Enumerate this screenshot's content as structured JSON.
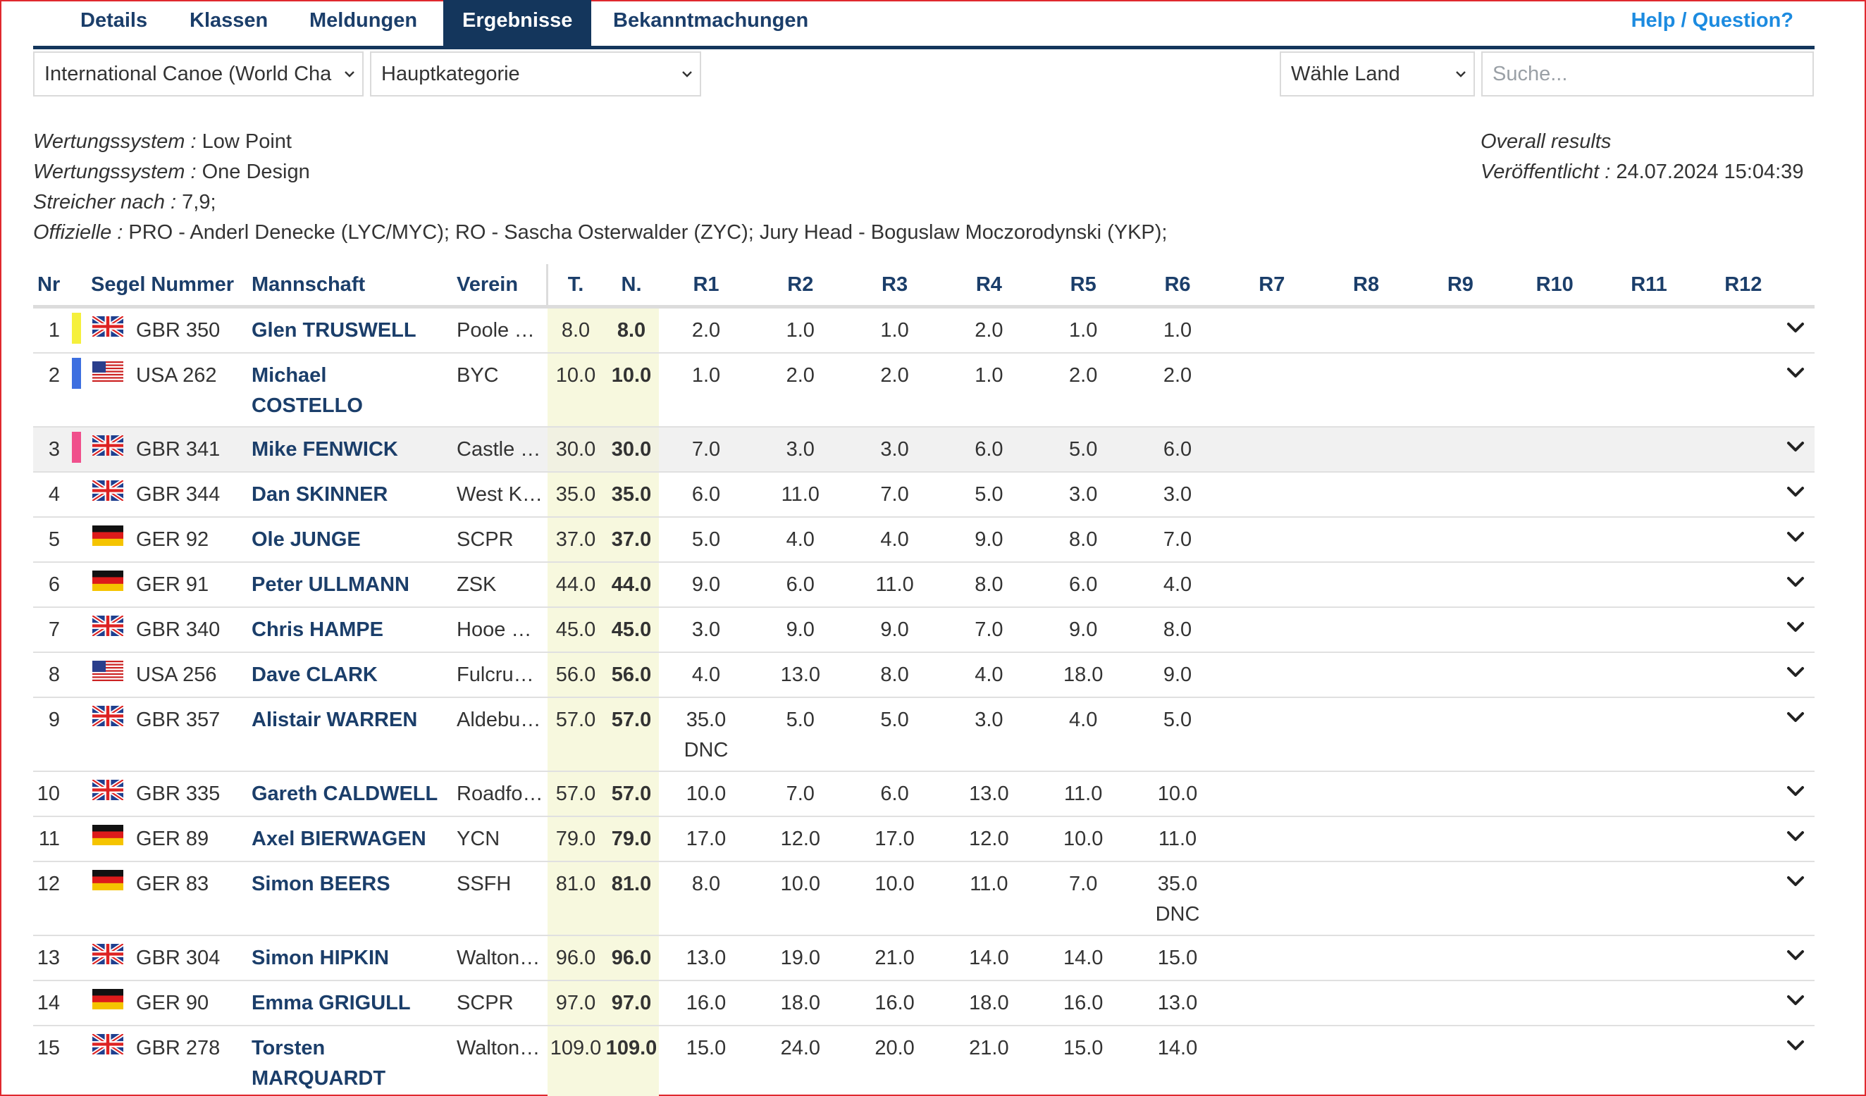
{
  "nav": {
    "tabs": [
      {
        "label": "Details",
        "active": false
      },
      {
        "label": "Klassen",
        "active": false
      },
      {
        "label": "Meldungen",
        "active": false
      },
      {
        "label": "Ergebnisse",
        "active": true
      },
      {
        "label": "Bekanntmachungen",
        "active": false
      }
    ],
    "help": "Help / Question?"
  },
  "filters": {
    "class_select": "International Canoe (World Cha",
    "category_select": "Hauptkategorie",
    "country_select": "Wähle Land",
    "search_placeholder": "Suche..."
  },
  "info": {
    "lines": [
      {
        "label": "Wertungssystem :",
        "value": "Low Point"
      },
      {
        "label": "Wertungssystem :",
        "value": "One Design"
      },
      {
        "label": "Streicher nach :",
        "value": "7,9;"
      },
      {
        "label": "Offizielle :",
        "value": "PRO - Anderl Denecke (LYC/MYC); RO - Sascha Osterwalder (ZYC); Jury Head - Boguslaw Moczorodynski (YKP);"
      }
    ],
    "overall": "Overall results",
    "published_label": "Veröffentlicht :",
    "published_value": "24.07.2024 15:04:39"
  },
  "table": {
    "headers": {
      "nr": "Nr",
      "sail": "Segel Nummer",
      "crew": "Mannschaft",
      "club": "Verein",
      "total": "T.",
      "net": "N.",
      "races": [
        "R1",
        "R2",
        "R3",
        "R4",
        "R5",
        "R6",
        "R7",
        "R8",
        "R9",
        "R10",
        "R11",
        "R12"
      ]
    },
    "rows": [
      {
        "nr": "1",
        "marker": "#f5f03c",
        "flag": "GBR",
        "sail": "GBR 350",
        "name": [
          "Glen TRUSWELL"
        ],
        "club": "Poole Yacht Club",
        "total": "8.0",
        "net": "8.0",
        "races": [
          "2.0",
          "1.0",
          "1.0",
          "2.0",
          "1.0",
          "1.0"
        ],
        "codes": [
          "",
          "",
          "",
          "",
          "",
          ""
        ]
      },
      {
        "nr": "2",
        "marker": "#3d6fe0",
        "flag": "USA",
        "sail": "USA 262",
        "name": [
          "Michael",
          "COSTELLO"
        ],
        "club": "BYC",
        "total": "10.0",
        "net": "10.0",
        "races": [
          "1.0",
          "2.0",
          "2.0",
          "1.0",
          "2.0",
          "2.0"
        ],
        "codes": [
          "",
          "",
          "",
          "",
          "",
          ""
        ]
      },
      {
        "nr": "3",
        "marker": "#f0508c",
        "flag": "GBR",
        "sail": "GBR 341",
        "name": [
          "Mike FENWICK"
        ],
        "club": "Castle Cove SC",
        "total": "30.0",
        "net": "30.0",
        "races": [
          "7.0",
          "3.0",
          "3.0",
          "6.0",
          "5.0",
          "6.0"
        ],
        "codes": [
          "",
          "",
          "",
          "",
          "",
          ""
        ]
      },
      {
        "nr": "4",
        "marker": "",
        "flag": "GBR",
        "sail": "GBR 344",
        "name": [
          "Dan SKINNER"
        ],
        "club": "West Kirby SC",
        "total": "35.0",
        "net": "35.0",
        "races": [
          "6.0",
          "11.0",
          "7.0",
          "5.0",
          "3.0",
          "3.0"
        ],
        "codes": [
          "",
          "",
          "",
          "",
          "",
          ""
        ]
      },
      {
        "nr": "5",
        "marker": "",
        "flag": "GER",
        "sail": "GER 92",
        "name": [
          "Ole JUNGE"
        ],
        "club": "SCPR",
        "total": "37.0",
        "net": "37.0",
        "races": [
          "5.0",
          "4.0",
          "4.0",
          "9.0",
          "8.0",
          "7.0"
        ],
        "codes": [
          "",
          "",
          "",
          "",
          "",
          ""
        ]
      },
      {
        "nr": "6",
        "marker": "",
        "flag": "GER",
        "sail": "GER 91",
        "name": [
          "Peter ULLMANN"
        ],
        "club": "ZSK",
        "total": "44.0",
        "net": "44.0",
        "races": [
          "9.0",
          "6.0",
          "11.0",
          "8.0",
          "6.0",
          "4.0"
        ],
        "codes": [
          "",
          "",
          "",
          "",
          "",
          ""
        ]
      },
      {
        "nr": "7",
        "marker": "",
        "flag": "GBR",
        "sail": "GBR 340",
        "name": [
          "Chris HAMPE"
        ],
        "club": "Hooe Point SC",
        "total": "45.0",
        "net": "45.0",
        "races": [
          "3.0",
          "9.0",
          "9.0",
          "7.0",
          "9.0",
          "8.0"
        ],
        "codes": [
          "",
          "",
          "",
          "",
          "",
          ""
        ]
      },
      {
        "nr": "8",
        "marker": "",
        "flag": "USA",
        "sail": "USA 256",
        "name": [
          "Dave CLARK"
        ],
        "club": "Fulcrum Speed Sailing",
        "total": "56.0",
        "net": "56.0",
        "races": [
          "4.0",
          "13.0",
          "8.0",
          "4.0",
          "18.0",
          "9.0"
        ],
        "codes": [
          "",
          "",
          "",
          "",
          "",
          ""
        ]
      },
      {
        "nr": "9",
        "marker": "",
        "flag": "GBR",
        "sail": "GBR 357",
        "name": [
          "Alistair WARREN"
        ],
        "club": "Aldeburgh YC",
        "total": "57.0",
        "net": "57.0",
        "races": [
          "35.0",
          "5.0",
          "5.0",
          "3.0",
          "4.0",
          "5.0"
        ],
        "codes": [
          "DNC",
          "",
          "",
          "",
          "",
          ""
        ]
      },
      {
        "nr": "10",
        "marker": "",
        "flag": "GBR",
        "sail": "GBR 335",
        "name": [
          "Gareth CALDWELL"
        ],
        "club": "Roadford Lake SC",
        "total": "57.0",
        "net": "57.0",
        "races": [
          "10.0",
          "7.0",
          "6.0",
          "13.0",
          "11.0",
          "10.0"
        ],
        "codes": [
          "",
          "",
          "",
          "",
          "",
          ""
        ]
      },
      {
        "nr": "11",
        "marker": "",
        "flag": "GER",
        "sail": "GER 89",
        "name": [
          "Axel BIERWAGEN"
        ],
        "club": "YCN",
        "total": "79.0",
        "net": "79.0",
        "races": [
          "17.0",
          "12.0",
          "17.0",
          "12.0",
          "10.0",
          "11.0"
        ],
        "codes": [
          "",
          "",
          "",
          "",
          "",
          ""
        ]
      },
      {
        "nr": "12",
        "marker": "",
        "flag": "GER",
        "sail": "GER 83",
        "name": [
          "Simon BEERS"
        ],
        "club": "SSFH",
        "total": "81.0",
        "net": "81.0",
        "races": [
          "8.0",
          "10.0",
          "10.0",
          "11.0",
          "7.0",
          "35.0"
        ],
        "codes": [
          "",
          "",
          "",
          "",
          "",
          "DNC"
        ]
      },
      {
        "nr": "13",
        "marker": "",
        "flag": "GBR",
        "sail": "GBR 304",
        "name": [
          "Simon HIPKIN"
        ],
        "club": "Walton and Frinton YC",
        "total": "96.0",
        "net": "96.0",
        "races": [
          "13.0",
          "19.0",
          "21.0",
          "14.0",
          "14.0",
          "15.0"
        ],
        "codes": [
          "",
          "",
          "",
          "",
          "",
          ""
        ]
      },
      {
        "nr": "14",
        "marker": "",
        "flag": "GER",
        "sail": "GER 90",
        "name": [
          "Emma GRIGULL"
        ],
        "club": "SCPR",
        "total": "97.0",
        "net": "97.0",
        "races": [
          "16.0",
          "18.0",
          "16.0",
          "18.0",
          "16.0",
          "13.0"
        ],
        "codes": [
          "",
          "",
          "",
          "",
          "",
          ""
        ]
      },
      {
        "nr": "15",
        "marker": "",
        "flag": "GBR",
        "sail": "GBR 278",
        "name": [
          "Torsten",
          "MARQUARDT"
        ],
        "club": "Walton and Frinton YC",
        "total": "109.0",
        "net": "109.0",
        "races": [
          "15.0",
          "24.0",
          "20.0",
          "21.0",
          "15.0",
          "14.0"
        ],
        "codes": [
          "",
          "",
          "",
          "",
          "",
          ""
        ]
      }
    ]
  }
}
